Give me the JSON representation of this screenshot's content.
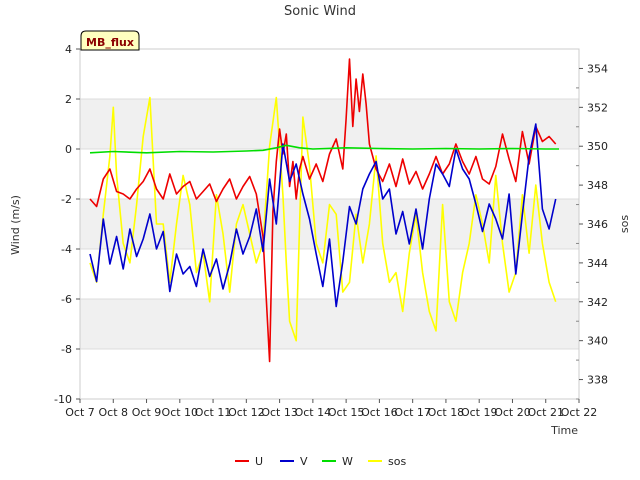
{
  "chart_data": {
    "type": "line",
    "title": "Sonic Wind",
    "badge": "MB_flux",
    "xlabel": "Time",
    "ylabel": "Wind (m/s)",
    "y2label": "sos",
    "ylim": [
      -10,
      4
    ],
    "y2lim": [
      337,
      355
    ],
    "yticks": [
      -10,
      -8,
      -6,
      -4,
      -2,
      0,
      2,
      4
    ],
    "y2ticks": [
      338,
      340,
      342,
      344,
      346,
      348,
      350,
      352,
      354
    ],
    "xlim": [
      0,
      15
    ],
    "x_ticks": [
      "Oct 7",
      "Oct 8",
      "Oct 9",
      "Oct 10",
      "Oct 11",
      "Oct 12",
      "Oct 13",
      "Oct 14",
      "Oct 15",
      "Oct 16",
      "Oct 17",
      "Oct 18",
      "Oct 19",
      "Oct 20",
      "Oct 21",
      "Oct 22"
    ],
    "grid": true,
    "legend_position": "bottom-center",
    "series": [
      {
        "name": "U",
        "axis": "left",
        "color": "#ee0000",
        "x": [
          0.3,
          0.5,
          0.7,
          0.9,
          1.1,
          1.3,
          1.5,
          1.7,
          1.9,
          2.1,
          2.3,
          2.5,
          2.7,
          2.9,
          3.1,
          3.3,
          3.5,
          3.7,
          3.9,
          4.1,
          4.3,
          4.5,
          4.7,
          4.9,
          5.1,
          5.3,
          5.5,
          5.7,
          5.8,
          5.9,
          6.0,
          6.1,
          6.2,
          6.3,
          6.4,
          6.5,
          6.6,
          6.7,
          6.9,
          7.1,
          7.3,
          7.5,
          7.7,
          7.9,
          8.0,
          8.1,
          8.2,
          8.3,
          8.4,
          8.5,
          8.6,
          8.7,
          8.9,
          9.1,
          9.3,
          9.5,
          9.7,
          9.9,
          10.1,
          10.3,
          10.5,
          10.7,
          10.9,
          11.1,
          11.3,
          11.5,
          11.7,
          11.9,
          12.1,
          12.3,
          12.5,
          12.7,
          12.9,
          13.1,
          13.3,
          13.5,
          13.7,
          13.9,
          14.1,
          14.3
        ],
        "y": [
          -2.0,
          -2.3,
          -1.2,
          -0.8,
          -1.7,
          -1.8,
          -2.0,
          -1.6,
          -1.3,
          -0.8,
          -1.6,
          -2.0,
          -1.0,
          -1.8,
          -1.5,
          -1.3,
          -2.0,
          -1.7,
          -1.4,
          -2.1,
          -1.6,
          -1.2,
          -2.0,
          -1.5,
          -1.1,
          -1.8,
          -3.5,
          -8.5,
          -2.5,
          -0.5,
          0.8,
          -0.2,
          0.6,
          -1.5,
          -0.5,
          -2.0,
          -0.8,
          -0.3,
          -1.2,
          -0.6,
          -1.3,
          -0.2,
          0.4,
          -0.8,
          1.2,
          3.6,
          0.9,
          2.8,
          1.5,
          3.0,
          1.8,
          0.2,
          -0.8,
          -1.3,
          -0.6,
          -1.5,
          -0.4,
          -1.4,
          -0.9,
          -1.6,
          -1.0,
          -0.3,
          -1.0,
          -0.6,
          0.2,
          -0.5,
          -1.0,
          -0.3,
          -1.2,
          -1.4,
          -0.7,
          0.6,
          -0.4,
          -1.3,
          0.7,
          -0.6,
          0.9,
          0.3,
          0.5,
          0.2
        ]
      },
      {
        "name": "V",
        "axis": "left",
        "color": "#0000cc",
        "x": [
          0.3,
          0.5,
          0.7,
          0.9,
          1.1,
          1.3,
          1.5,
          1.7,
          1.9,
          2.1,
          2.3,
          2.5,
          2.7,
          2.9,
          3.1,
          3.3,
          3.5,
          3.7,
          3.9,
          4.1,
          4.3,
          4.5,
          4.7,
          4.9,
          5.1,
          5.3,
          5.5,
          5.7,
          5.9,
          6.1,
          6.3,
          6.5,
          6.7,
          6.9,
          7.1,
          7.3,
          7.5,
          7.7,
          7.9,
          8.1,
          8.3,
          8.5,
          8.7,
          8.9,
          9.1,
          9.3,
          9.5,
          9.7,
          9.9,
          10.1,
          10.3,
          10.5,
          10.7,
          10.9,
          11.1,
          11.3,
          11.5,
          11.7,
          11.9,
          12.1,
          12.3,
          12.5,
          12.7,
          12.9,
          13.1,
          13.3,
          13.5,
          13.7,
          13.9,
          14.1,
          14.3
        ],
        "y": [
          -4.2,
          -5.3,
          -2.8,
          -4.6,
          -3.5,
          -4.8,
          -3.2,
          -4.3,
          -3.6,
          -2.6,
          -4.0,
          -3.3,
          -5.7,
          -4.2,
          -5.0,
          -4.7,
          -5.5,
          -4.0,
          -5.1,
          -4.4,
          -5.6,
          -4.6,
          -3.2,
          -4.2,
          -3.5,
          -2.4,
          -4.1,
          -1.2,
          -3.0,
          0.2,
          -1.3,
          -0.6,
          -1.8,
          -2.8,
          -4.2,
          -5.5,
          -3.6,
          -6.3,
          -4.5,
          -2.3,
          -3.0,
          -1.6,
          -1.0,
          -0.5,
          -2.0,
          -1.6,
          -3.4,
          -2.5,
          -3.8,
          -2.4,
          -4.0,
          -2.0,
          -0.6,
          -1.0,
          -1.5,
          0.0,
          -0.8,
          -1.2,
          -2.2,
          -3.3,
          -2.2,
          -2.8,
          -3.6,
          -1.8,
          -5.0,
          -2.6,
          -0.3,
          1.0,
          -2.4,
          -3.2,
          -2.0
        ]
      },
      {
        "name": "W",
        "axis": "left",
        "color": "#00dd00",
        "x": [
          0.3,
          1.0,
          2.0,
          3.0,
          4.0,
          5.0,
          5.5,
          5.9,
          6.2,
          6.6,
          7.0,
          8.0,
          9.0,
          10.0,
          11.0,
          12.0,
          13.0,
          14.0,
          14.4
        ],
        "y": [
          -0.15,
          -0.1,
          -0.15,
          -0.1,
          -0.12,
          -0.08,
          -0.05,
          0.05,
          0.15,
          0.05,
          0.0,
          0.05,
          0.02,
          0.0,
          0.02,
          0.0,
          0.02,
          0.0,
          0.0
        ]
      },
      {
        "name": "sos",
        "axis": "right",
        "color": "#ffff00",
        "x": [
          0.3,
          0.5,
          0.7,
          0.9,
          1.0,
          1.1,
          1.3,
          1.5,
          1.7,
          1.9,
          2.1,
          2.3,
          2.5,
          2.7,
          2.9,
          3.1,
          3.3,
          3.5,
          3.7,
          3.9,
          4.1,
          4.3,
          4.5,
          4.7,
          4.9,
          5.1,
          5.3,
          5.5,
          5.7,
          5.9,
          6.1,
          6.2,
          6.3,
          6.5,
          6.6,
          6.7,
          6.9,
          7.1,
          7.3,
          7.5,
          7.7,
          7.9,
          8.1,
          8.3,
          8.5,
          8.7,
          8.9,
          9.1,
          9.3,
          9.5,
          9.7,
          9.9,
          10.1,
          10.3,
          10.5,
          10.7,
          10.9,
          11.1,
          11.3,
          11.5,
          11.7,
          11.9,
          12.1,
          12.3,
          12.5,
          12.7,
          12.9,
          13.1,
          13.3,
          13.5,
          13.7,
          13.9,
          14.1,
          14.3
        ],
        "y": [
          344.0,
          343.0,
          346.5,
          349.5,
          352.0,
          348.5,
          345.0,
          344.0,
          347.0,
          350.5,
          352.5,
          346.0,
          346.0,
          343.0,
          346.0,
          348.5,
          347.0,
          343.5,
          344.5,
          342.0,
          347.5,
          345.5,
          342.5,
          346.0,
          347.0,
          345.5,
          344.0,
          345.0,
          350.0,
          352.5,
          347.5,
          344.0,
          341.0,
          340.0,
          346.0,
          351.5,
          349.0,
          345.0,
          344.0,
          347.0,
          346.5,
          342.5,
          343.0,
          346.5,
          344.0,
          346.0,
          349.5,
          345.0,
          343.0,
          343.5,
          341.5,
          344.5,
          346.5,
          343.5,
          341.5,
          340.5,
          347.0,
          342.0,
          341.0,
          343.5,
          345.0,
          347.5,
          346.0,
          344.0,
          348.5,
          345.0,
          342.5,
          343.5,
          347.5,
          344.5,
          348.0,
          345.0,
          343.0,
          342.0
        ]
      }
    ]
  }
}
